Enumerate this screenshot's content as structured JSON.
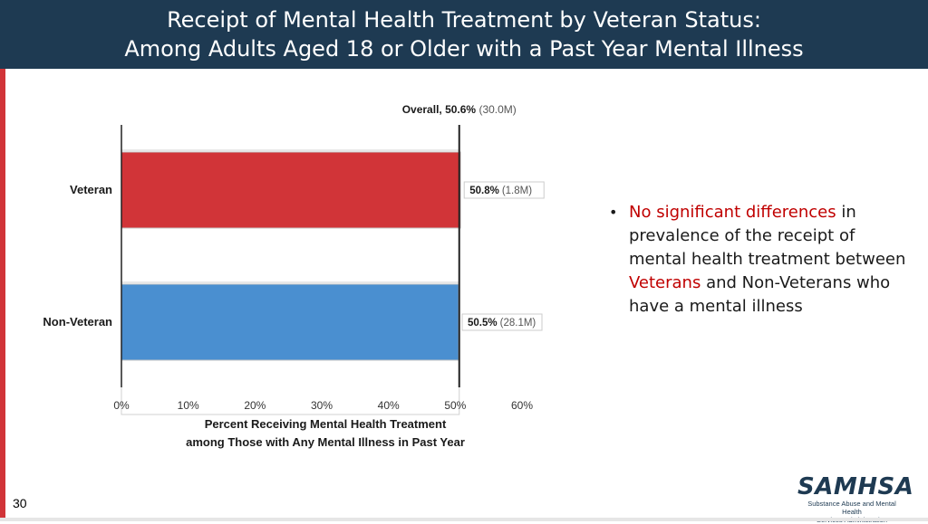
{
  "header": {
    "title_line1": "Receipt of Mental Health Treatment by Veteran Status:",
    "title_line2": "Among Adults Aged 18 or Older with a Past Year Mental Illness"
  },
  "chart_data": {
    "type": "bar",
    "orientation": "horizontal",
    "categories": [
      "Veteran",
      "Non-Veteran"
    ],
    "values": [
      50.8,
      50.5
    ],
    "value_labels": [
      "50.8%",
      "50.5%"
    ],
    "count_labels": [
      "(1.8M)",
      "(28.1M)"
    ],
    "bar_colors": [
      "#d13438",
      "#4a8fd0"
    ],
    "xlim": [
      0,
      60
    ],
    "xticks": [
      0,
      10,
      20,
      30,
      40,
      50,
      60
    ],
    "xtick_labels": [
      "0%",
      "10%",
      "20%",
      "30%",
      "40%",
      "50%",
      "60%"
    ],
    "xlabel_line1": "Percent Receiving Mental Health Treatment",
    "xlabel_line2": "among Those with Any Mental Illness in Past Year",
    "reference_line": {
      "value": 50.6,
      "label": "Overall,",
      "value_label": "50.6%",
      "count_label": "(30.0M)"
    }
  },
  "bullet": {
    "part1": "No significant differences",
    "part2": " in prevalence of the receipt of mental health treatment between ",
    "part3": "Veterans",
    "part4": " and Non-Veterans who have a mental illness"
  },
  "footer": {
    "page_number": "30",
    "logo_name": "SAMHSA",
    "logo_line1": "Substance Abuse and Mental Health",
    "logo_line2": "Services Administration"
  }
}
